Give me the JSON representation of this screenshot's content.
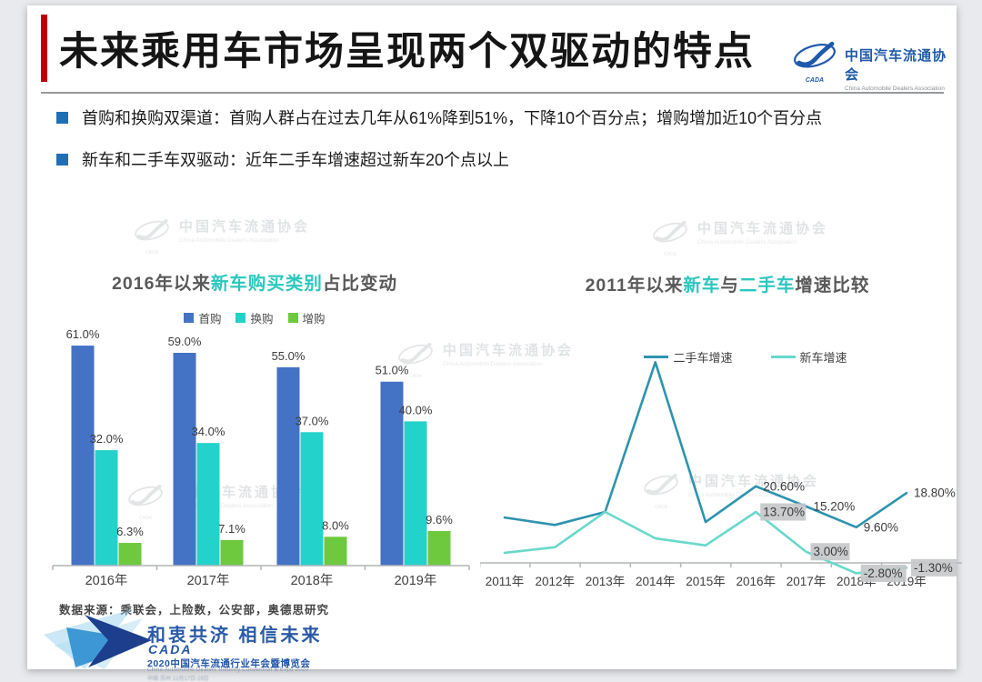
{
  "page": {
    "background": "#e8eaed",
    "slide_background": "#ffffff"
  },
  "header": {
    "title": "未来乘用车市场呈现两个双驱动的特点",
    "accent_color": "#C00000",
    "logo": {
      "org_cn": "中国汽车流通协会",
      "org_en": "China Automobile Dealers Association",
      "abbr": "CADA",
      "color": "#1E5AA9"
    }
  },
  "bullets": {
    "marker_color": "#1F6FB5",
    "items": [
      "首购和换购双渠道：首购人群占在过去几年从61%降到51%，下降10个百分点；增购增加近10个百分点",
      "新车和二手车双驱动：近年二手车增速超过新车20个点以上"
    ]
  },
  "watermark": {
    "cn": "中国汽车流通协会",
    "en": "China Automobile Dealers Association",
    "abbr": "CADA"
  },
  "source_note": "数据来源：乘联会，上险数，公安部，奥德思研究",
  "footer": {
    "slogan": "和衷共济 相信未来",
    "brand": "CADA",
    "event": "2020中国汽车流通行业年会暨博览会",
    "event_en": "China Automobile Dealers Industry Convention & Expo 2020",
    "event_detail": "中国·苏州 12月17日-19日"
  },
  "chart_data": [
    {
      "type": "bar",
      "title": "2016年以来新车购买类别占比变动",
      "title_parts": [
        {
          "text": "2016年以来",
          "highlight": false
        },
        {
          "text": "新车购买类别",
          "highlight": true
        },
        {
          "text": "占比变动",
          "highlight": false
        }
      ],
      "highlight_color": "#2BC7BF",
      "categories": [
        "2016年",
        "2017年",
        "2018年",
        "2019年"
      ],
      "series": [
        {
          "name": "首购",
          "color": "#4472C4",
          "values": [
            61.0,
            59.0,
            55.0,
            51.0
          ],
          "labels": [
            "61.0%",
            "59.0%",
            "55.0%",
            "51.0%"
          ]
        },
        {
          "name": "换购",
          "color": "#23D2CA",
          "values": [
            32.0,
            34.0,
            37.0,
            40.0
          ],
          "labels": [
            "32.0%",
            "34.0%",
            "37.0%",
            "40.0%"
          ]
        },
        {
          "name": "增购",
          "color": "#6EC93E",
          "values": [
            6.3,
            7.1,
            8.0,
            9.6
          ],
          "labels": [
            "6.3%",
            "7.1%",
            "8.0%",
            "9.6%"
          ]
        }
      ],
      "value_suffix": "%",
      "ylim": [
        0,
        65
      ],
      "grid": false,
      "legend_position": "top"
    },
    {
      "type": "line",
      "title": "2011年以来新车与二手车增速比较",
      "title_parts": [
        {
          "text": "2011年以来",
          "highlight": false
        },
        {
          "text": "新车",
          "highlight": true
        },
        {
          "text": "与",
          "highlight": false
        },
        {
          "text": "二手车",
          "highlight": true
        },
        {
          "text": "增速比较",
          "highlight": false
        }
      ],
      "highlight_color": "#2BC7BF",
      "x": [
        "2011年",
        "2012年",
        "2013年",
        "2014年",
        "2015年",
        "2016年",
        "2017年",
        "2018年",
        "2019年"
      ],
      "series": [
        {
          "name": "二手车增速",
          "color": "#2E93AE",
          "values": [
            12.2,
            10.2,
            13.7,
            54.0,
            11.0,
            20.6,
            15.2,
            9.6,
            18.8
          ],
          "labels": [
            null,
            null,
            null,
            null,
            null,
            "20.60%",
            "15.20%",
            "9.60%",
            "18.80%"
          ],
          "label_bg": null
        },
        {
          "name": "新车增速",
          "color": "#68D8CB",
          "values": [
            2.7,
            4.2,
            13.7,
            6.6,
            4.7,
            13.7,
            3.0,
            -2.8,
            -1.3
          ],
          "labels": [
            null,
            null,
            null,
            null,
            null,
            "13.70%",
            "3.00%",
            "-2.80%",
            "-1.30%"
          ],
          "label_bg": "#c6c8ca"
        }
      ],
      "ylim": [
        -6,
        58
      ],
      "grid": false,
      "legend_position": "top"
    }
  ]
}
